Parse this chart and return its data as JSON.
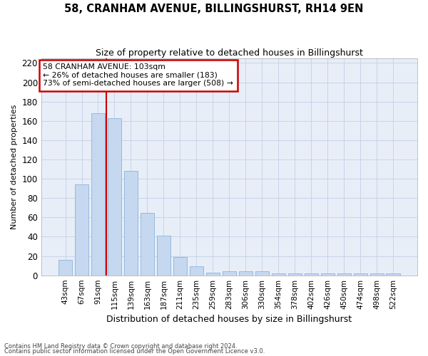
{
  "title": "58, CRANHAM AVENUE, BILLINGSHURST, RH14 9EN",
  "subtitle": "Size of property relative to detached houses in Billingshurst",
  "xlabel": "Distribution of detached houses by size in Billingshurst",
  "ylabel": "Number of detached properties",
  "categories": [
    "43sqm",
    "67sqm",
    "91sqm",
    "115sqm",
    "139sqm",
    "163sqm",
    "187sqm",
    "211sqm",
    "235sqm",
    "259sqm",
    "283sqm",
    "306sqm",
    "330sqm",
    "354sqm",
    "378sqm",
    "402sqm",
    "426sqm",
    "450sqm",
    "474sqm",
    "498sqm",
    "522sqm"
  ],
  "values": [
    16,
    94,
    168,
    163,
    108,
    65,
    41,
    19,
    9,
    3,
    4,
    4,
    4,
    2,
    2,
    2,
    2,
    2,
    2,
    2,
    2
  ],
  "bar_color": "#c5d8f0",
  "bar_edge_color": "#8ab4d8",
  "grid_color": "#c8d4e8",
  "background_color": "#e8eef8",
  "annotation_text_line1": "58 CRANHAM AVENUE: 103sqm",
  "annotation_text_line2": "← 26% of detached houses are smaller (183)",
  "annotation_text_line3": "73% of semi-detached houses are larger (508) →",
  "annotation_box_color": "#ffffff",
  "annotation_border_color": "#cc0000",
  "vline_color": "#cc0000",
  "vline_x": 2.5,
  "ylim": [
    0,
    225
  ],
  "yticks": [
    0,
    20,
    40,
    60,
    80,
    100,
    120,
    140,
    160,
    180,
    200,
    220
  ],
  "footnote1": "Contains HM Land Registry data © Crown copyright and database right 2024.",
  "footnote2": "Contains public sector information licensed under the Open Government Licence v3.0.",
  "fig_width": 6.0,
  "fig_height": 5.0,
  "title_fontsize": 10.5,
  "subtitle_fontsize": 9,
  "ylabel_fontsize": 8,
  "xlabel_fontsize": 9,
  "tick_fontsize": 7.5,
  "annot_fontsize": 7.8
}
